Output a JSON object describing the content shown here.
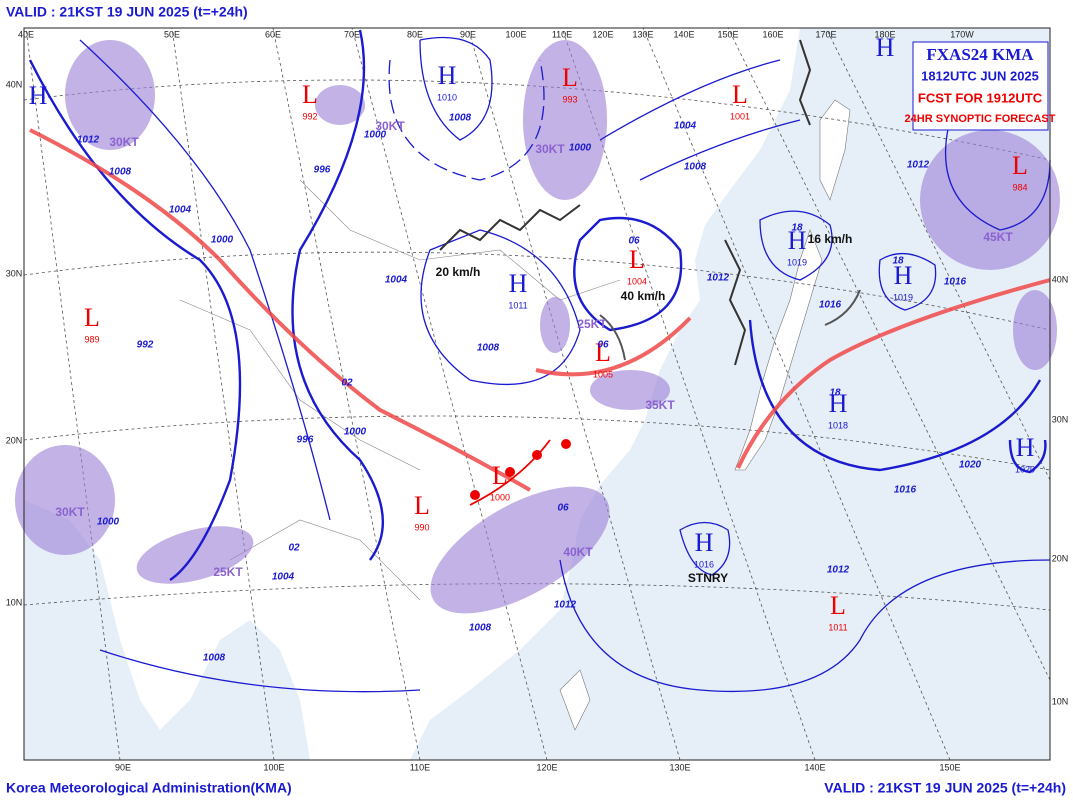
{
  "header": {
    "valid": "VALID : 21KST 19 JUN 2025  (t=+24h)"
  },
  "info_box": {
    "product": "FXAS24 KMA",
    "time": "1812UTC JUN 2025",
    "forecast": "FCST FOR 1912UTC",
    "kind": "24HR SYNOPTIC FORECAST"
  },
  "footer": {
    "agency": "Korea Meteorological Administration(KMA)",
    "valid": "VALID : 21KST 19 JUN 2025  (t=+24h)"
  },
  "top_lon_labels": [
    "40E",
    "50E",
    "60E",
    "70E",
    "80E",
    "90E",
    "100E",
    "110E",
    "120E",
    "130E",
    "140E",
    "150E",
    "160E",
    "170E",
    "180E",
    "170W"
  ],
  "bottom_lon_labels": [
    "90E",
    "100E",
    "110E",
    "120E",
    "130E",
    "140E",
    "150E"
  ],
  "left_lat_labels": [
    "40N",
    "30N",
    "20N",
    "10N"
  ],
  "right_lat_labels": [
    "40N",
    "30N",
    "20N",
    "10N"
  ],
  "pressure_systems": [
    {
      "symbol": "H",
      "value": "1010"
    },
    {
      "symbol": "L",
      "value": "993"
    },
    {
      "symbol": "L",
      "value": "1001"
    },
    {
      "symbol": "L",
      "value": "992"
    },
    {
      "symbol": "H",
      "value": "1011"
    },
    {
      "symbol": "L",
      "value": "1004"
    },
    {
      "symbol": "L",
      "value": "1005"
    },
    {
      "symbol": "L",
      "value": "989"
    },
    {
      "symbol": "L",
      "value": "1000"
    },
    {
      "symbol": "L",
      "value": "990"
    },
    {
      "symbol": "H",
      "value": "1016"
    },
    {
      "symbol": "L",
      "value": "1011"
    },
    {
      "symbol": "H",
      "value": "1019"
    },
    {
      "symbol": "H",
      "value": "1019"
    },
    {
      "symbol": "H",
      "value": "1018"
    },
    {
      "symbol": "H",
      "value": "1020"
    },
    {
      "symbol": "L",
      "value": "984"
    },
    {
      "symbol": "H"
    },
    {
      "symbol": "H"
    }
  ],
  "isobar_labels": [
    "1008",
    "1000",
    "996",
    "1004",
    "1000",
    "992",
    "996",
    "1000",
    "1008",
    "1012",
    "1008",
    "1004",
    "1000",
    "1004",
    "1008",
    "1012",
    "1016",
    "1016",
    "1012",
    "1016",
    "1020",
    "1012",
    "1012",
    "1008",
    "1008",
    "1004",
    "1000",
    "02",
    "02",
    "06",
    "06",
    "06",
    "18",
    "18",
    "18"
  ],
  "wind_labels": [
    "30KT",
    "30KT",
    "30KT",
    "25KT",
    "35KT",
    "40KT",
    "25KT",
    "30KT",
    "45KT"
  ],
  "movement_labels": [
    "20 km/h",
    "40 km/h",
    "16 km/h",
    "STNRY"
  ]
}
